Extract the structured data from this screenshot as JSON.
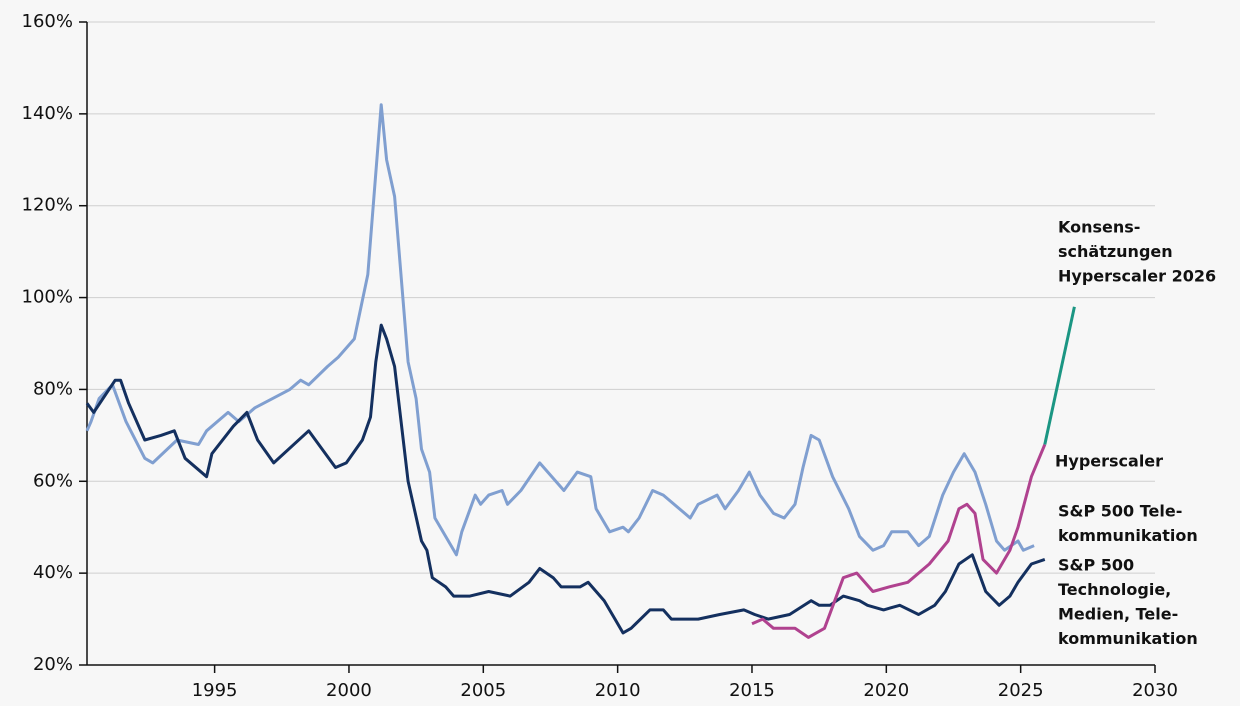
{
  "chart_data": {
    "type": "line",
    "xlim": [
      1990.25,
      2030
    ],
    "xticks": [
      1995,
      2000,
      2005,
      2010,
      2015,
      2020,
      2025,
      2030
    ],
    "ylim": [
      20,
      160
    ],
    "yticks": [
      {
        "value": 20,
        "label": "20%"
      },
      {
        "value": 40,
        "label": "40%"
      },
      {
        "value": 60,
        "label": "60%"
      },
      {
        "value": 80,
        "label": "80%"
      },
      {
        "value": 100,
        "label": "100%"
      },
      {
        "value": 120,
        "label": "120%"
      },
      {
        "value": 140,
        "label": "140%"
      },
      {
        "value": 160,
        "label": "160%"
      }
    ],
    "grid": true,
    "series": [
      {
        "name": [
          "S&P 500 Tele-",
          "kommunikation"
        ],
        "color": "#809fd0",
        "x": [
          1990.25,
          1990.4,
          1990.7,
          1991.2,
          1991.7,
          1992.4,
          1992.7,
          1993.6,
          1994.4,
          1994.7,
          1995.5,
          1995.9,
          1996.5,
          1997.8,
          1998.2,
          1998.5,
          1999.2,
          1999.6,
          2000.2,
          2000.7,
          2001.2,
          2001.4,
          2001.7,
          2002.2,
          2002.5,
          2002.7,
          2003.0,
          2003.2,
          2004.0,
          2004.2,
          2004.7,
          2004.9,
          2005.2,
          2005.7,
          2005.9,
          2006.4,
          2007.1,
          2008.0,
          2008.5,
          2009.0,
          2009.2,
          2009.7,
          2010.2,
          2010.4,
          2010.8,
          2011.3,
          2011.7,
          2012.5,
          2012.7,
          2013.0,
          2013.7,
          2014.0,
          2014.5,
          2014.9,
          2015.3,
          2015.8,
          2016.2,
          2016.6,
          2016.9,
          2017.2,
          2017.5,
          2018.0,
          2018.6,
          2019.0,
          2019.5,
          2019.9,
          2020.2,
          2020.8,
          2021.2,
          2021.6,
          2022.1,
          2022.5,
          2022.9,
          2023.3,
          2023.7,
          2024.1,
          2024.4,
          2024.9,
          2025.1,
          2025.5
        ],
        "values": [
          71,
          73,
          78,
          81,
          73,
          65,
          64,
          69,
          68,
          71,
          75,
          73,
          76,
          80,
          82,
          81,
          85,
          87,
          91,
          105,
          142,
          130,
          122,
          86,
          78,
          67,
          62,
          52,
          44,
          49,
          57,
          55,
          57,
          58,
          55,
          58,
          64,
          58,
          62,
          61,
          54,
          49,
          50,
          49,
          52,
          58,
          57,
          53,
          52,
          55,
          57,
          54,
          58,
          62,
          57,
          53,
          52,
          55,
          63,
          70,
          69,
          61,
          54,
          48,
          45,
          46,
          49,
          49,
          46,
          48,
          57,
          62,
          66,
          62,
          55,
          47,
          45,
          47,
          45,
          46
        ]
      },
      {
        "name": [
          "S&P 500",
          "Technologie,",
          "Medien, Tele-",
          "kommunikation"
        ],
        "color": "#14305f",
        "x": [
          1990.25,
          1990.5,
          1991.3,
          1991.5,
          1991.8,
          1992.4,
          1993.0,
          1993.5,
          1993.9,
          1994.7,
          1994.9,
          1995.7,
          1996.2,
          1996.6,
          1997.2,
          1998.5,
          1999.5,
          1999.9,
          2000.5,
          2000.8,
          2001.0,
          2001.2,
          2001.4,
          2001.7,
          2002.2,
          2002.7,
          2002.9,
          2003.1,
          2003.6,
          2003.9,
          2004.5,
          2005.2,
          2006.0,
          2006.7,
          2007.1,
          2007.6,
          2007.9,
          2008.6,
          2008.9,
          2009.5,
          2009.9,
          2010.2,
          2010.5,
          2011.2,
          2011.7,
          2012.0,
          2013.0,
          2013.8,
          2014.7,
          2015.1,
          2015.6,
          2016.4,
          2017.2,
          2017.5,
          2017.9,
          2018.4,
          2019.0,
          2019.3,
          2019.9,
          2020.5,
          2021.2,
          2021.8,
          2022.2,
          2022.7,
          2023.2,
          2023.7,
          2024.2,
          2024.6,
          2024.9,
          2025.4,
          2025.9
        ],
        "values": [
          77,
          75,
          82,
          82,
          77,
          69,
          70,
          71,
          65,
          61,
          66,
          72,
          75,
          69,
          64,
          71,
          63,
          64,
          69,
          74,
          86,
          94,
          91,
          85,
          60,
          47,
          45,
          39,
          37,
          35,
          35,
          36,
          35,
          38,
          41,
          39,
          37,
          37,
          38,
          34,
          30,
          27,
          28,
          32,
          32,
          30,
          30,
          31,
          32,
          31,
          30,
          31,
          34,
          33,
          33,
          35,
          34,
          33,
          32,
          33,
          31,
          33,
          36,
          42,
          44,
          36,
          33,
          35,
          38,
          42,
          43
        ]
      },
      {
        "name": [
          "Hyperscaler"
        ],
        "color": "#b0428f",
        "x": [
          2015.0,
          2015.4,
          2015.8,
          2016.6,
          2017.1,
          2017.7,
          2018.4,
          2018.9,
          2019.5,
          2020.1,
          2020.8,
          2021.6,
          2022.3,
          2022.7,
          2023.0,
          2023.3,
          2023.6,
          2024.1,
          2024.6,
          2024.9,
          2025.4,
          2025.9
        ],
        "values": [
          29,
          30,
          28,
          28,
          26,
          28,
          39,
          40,
          36,
          37,
          38,
          42,
          47,
          54,
          55,
          53,
          43,
          40,
          45,
          50,
          61,
          68
        ]
      },
      {
        "name": [
          "Konsens-",
          "schätzungen",
          "Hyperscaler 2026"
        ],
        "color": "#1b9683",
        "x": [
          2025.9,
          2027.0
        ],
        "values": [
          68,
          98
        ]
      }
    ]
  }
}
